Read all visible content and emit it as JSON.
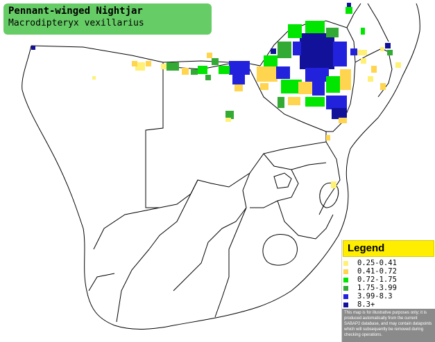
{
  "title": {
    "common_name": "Pennant-winged Nightjar",
    "scientific_name": "Macrodipteryx vexillarius"
  },
  "legend": {
    "heading": "Legend",
    "items": [
      {
        "label": "0.25-0.41",
        "color": "#fff176"
      },
      {
        "label": "0.41-0.72",
        "color": "#ffd54f"
      },
      {
        "label": "0.72-1.75",
        "color": "#00e600"
      },
      {
        "label": "1.75-3.99",
        "color": "#33aa33"
      },
      {
        "label": "3.99-8.3",
        "color": "#2222dd"
      },
      {
        "label": "8.3+",
        "color": "#111199"
      }
    ],
    "disclaimer": "This map is for illustrative purposes only; it is produced automatically from the current SABAP2 database, and may contain datapoints which will subsequently be removed during checking operations."
  },
  "map_colors": {
    "land": "#ffffff",
    "border": "#000000"
  }
}
